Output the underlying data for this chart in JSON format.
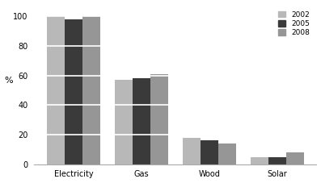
{
  "categories": [
    "Electricity",
    "Gas",
    "Wood",
    "Solar"
  ],
  "years": [
    "2002",
    "2005",
    "2008"
  ],
  "values": {
    "2002": [
      100,
      57,
      18,
      5
    ],
    "2005": [
      98,
      58,
      16,
      5
    ],
    "2008": [
      100,
      61,
      14,
      8
    ]
  },
  "colors": {
    "2002": "#b8b8b8",
    "2005": "#3a3a3a",
    "2008": "#969696"
  },
  "ylabel": "%",
  "ylim": [
    0,
    108
  ],
  "yticks": [
    0,
    20,
    40,
    60,
    80,
    100
  ],
  "yticklabels": [
    "0",
    "20",
    "40",
    "60",
    "80",
    "100"
  ],
  "bar_width": 0.26,
  "background_color": "#ffffff",
  "legend_fontsize": 6.5,
  "tick_fontsize": 7,
  "ylabel_fontsize": 8,
  "grid_color": "#ffffff",
  "grid_linewidth": 1.2
}
